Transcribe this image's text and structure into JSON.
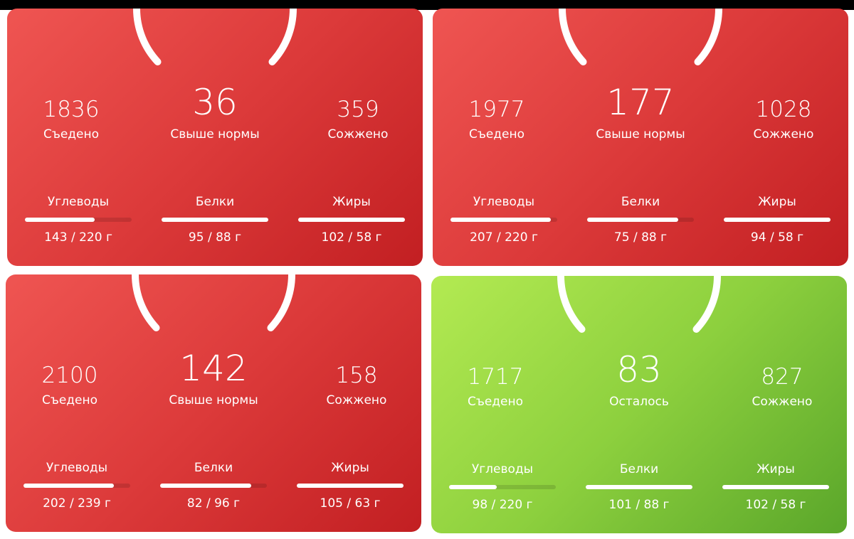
{
  "cards": [
    {
      "theme": "red",
      "eaten": "1836",
      "eaten_label": "Съедено",
      "center": "36",
      "center_label": "Свыше нормы",
      "burned": "359",
      "burned_label": "Сожжено",
      "macros": [
        {
          "name": "Углеводы",
          "amount": "143 / 220 г"
        },
        {
          "name": "Белки",
          "amount": "95 / 88 г"
        },
        {
          "name": "Жиры",
          "amount": "102 / 58 г"
        }
      ]
    },
    {
      "theme": "red",
      "eaten": "1977",
      "eaten_label": "Съедено",
      "center": "177",
      "center_label": "Свыше нормы",
      "burned": "1028",
      "burned_label": "Сожжено",
      "macros": [
        {
          "name": "Углеводы",
          "amount": "207 / 220 г"
        },
        {
          "name": "Белки",
          "amount": "75 / 88 г"
        },
        {
          "name": "Жиры",
          "amount": "94 / 58 г"
        }
      ]
    },
    {
      "theme": "red",
      "eaten": "2100",
      "eaten_label": "Съедено",
      "center": "142",
      "center_label": "Свыше нормы",
      "burned": "158",
      "burned_label": "Сожжено",
      "macros": [
        {
          "name": "Углеводы",
          "amount": "202 / 239 г"
        },
        {
          "name": "Белки",
          "amount": "82 / 96 г"
        },
        {
          "name": "Жиры",
          "amount": "105 / 63 г"
        }
      ]
    },
    {
      "theme": "green",
      "eaten": "1717",
      "eaten_label": "Съедено",
      "center": "83",
      "center_label": "Осталось",
      "burned": "827",
      "burned_label": "Сожжено",
      "macros": [
        {
          "name": "Углеводы",
          "amount": "98 / 220 г"
        },
        {
          "name": "Белки",
          "amount": "101 / 88 г"
        },
        {
          "name": "Жиры",
          "amount": "102 / 58 г"
        }
      ]
    }
  ]
}
